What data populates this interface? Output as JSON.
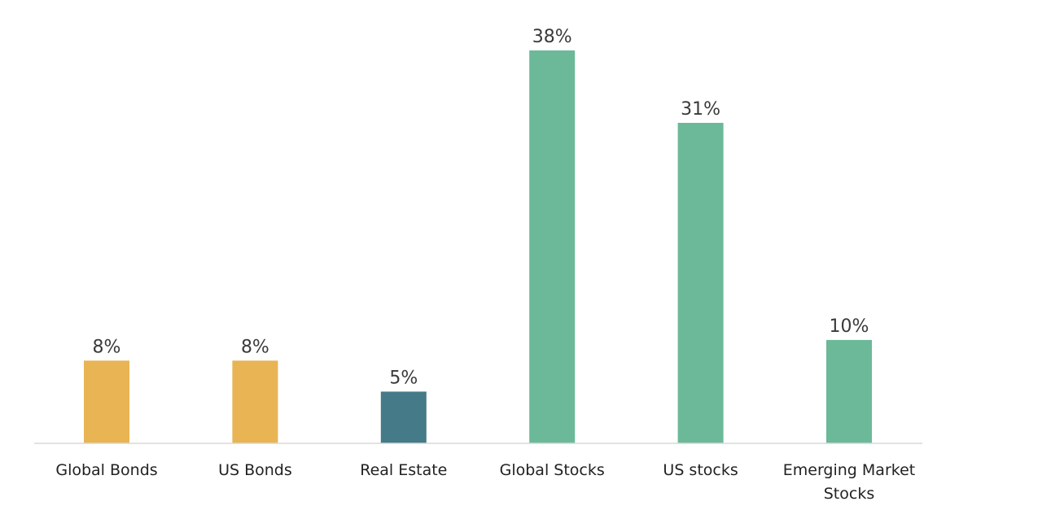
{
  "chart_data": {
    "type": "bar",
    "categories": [
      "Global Bonds",
      "US Bonds",
      "Real Estate",
      "Global Stocks",
      "US stocks",
      "Emerging Market Stocks"
    ],
    "category_lines": [
      [
        "Global Bonds"
      ],
      [
        "US Bonds"
      ],
      [
        "Real Estate"
      ],
      [
        "Global Stocks"
      ],
      [
        "US stocks"
      ],
      [
        "Emerging Market",
        "Stocks"
      ]
    ],
    "values": [
      8,
      8,
      5,
      38,
      31,
      10
    ],
    "data_labels": [
      "8%",
      "8%",
      "5%",
      "38%",
      "31%",
      "10%"
    ],
    "bar_colors": [
      "#E8B454",
      "#E8B454",
      "#457A89",
      "#6BB999",
      "#6BB999",
      "#6BB999"
    ],
    "ylim": [
      0,
      38
    ],
    "grid": false,
    "legend": "none"
  },
  "colors": {
    "bonds": "#E8B454",
    "real_estate": "#457A89",
    "stocks": "#6BB999",
    "axis": "#d9d9d9",
    "text": "#3a3a3a"
  }
}
